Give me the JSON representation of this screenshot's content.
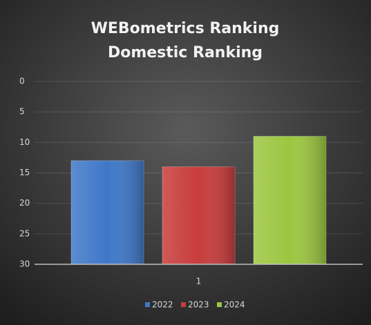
{
  "chart_data": {
    "type": "bar",
    "title": "WEBometrics Ranking",
    "subtitle": "Domestic Ranking",
    "categories": [
      "1"
    ],
    "series": [
      {
        "name": "2022",
        "color": "#3f78c8",
        "values": [
          13
        ]
      },
      {
        "name": "2023",
        "color": "#c83c3c",
        "values": [
          14
        ]
      },
      {
        "name": "2024",
        "color": "#9cc640",
        "values": [
          9
        ]
      }
    ],
    "ylim": [
      0,
      30
    ],
    "yticks": [
      0,
      5,
      10,
      15,
      20,
      25,
      30
    ],
    "y_inverted": true,
    "grid": true,
    "legend": "bottom"
  }
}
